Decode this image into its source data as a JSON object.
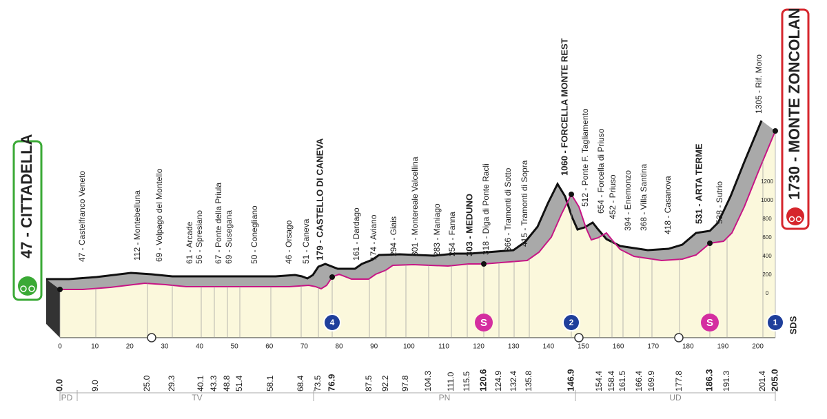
{
  "start": {
    "label": "47 - CITTADELLA"
  },
  "finish": {
    "label": "1730 - MONTE ZONCOLAN"
  },
  "waypoints": [
    "47 - Castelfranco Veneto",
    "112 - Montebelluna",
    "69 - Volpago del Montello",
    "61 - Arcade",
    "56 - Spresiano",
    "67 - Ponte della Priula",
    "69 - Susegana",
    "50 - Conegliano",
    "46 - Orsago",
    "51 - Caneva",
    "179 - CASTELLO DI CANEVA",
    "161 - Dardago",
    "174 - Aviano",
    "294 - Giais",
    "301 - Montereale Valcellina",
    "283 - Maniago",
    "254 - Fanna",
    "303 - MEDUNO",
    "318 - Diga di Ponte Racli",
    "366 - Tramonti di Sotto",
    "415 - Tramonti di Sopra",
    "1060 - FORCELLA MONTE REST",
    "512 - Ponte F. Tagliamento",
    "654 - Forcella di Priuso",
    "452 - Priuso",
    "394 - Enemonzo",
    "368 - Villa Santina",
    "418 - Casanova",
    "531 - ARTA TERME",
    "538 - Sutrio",
    "1305 - Rif. Moro"
  ],
  "altitude_scale": [
    0,
    200,
    400,
    600,
    800,
    1000,
    1200
  ],
  "km_axis": [
    0,
    10,
    20,
    30,
    40,
    50,
    60,
    70,
    80,
    90,
    100,
    110,
    120,
    130,
    140,
    150,
    160,
    170,
    180,
    190,
    200
  ],
  "distances": [
    "0.0",
    "9.0",
    "25.0",
    "29.3",
    "40.1",
    "43.3",
    "48.8",
    "51.4",
    "58.1",
    "68.4",
    "73.5",
    "76.9",
    "87.5",
    "92.2",
    "97.8",
    "104.3",
    "111.0",
    "115.5",
    "120.6",
    "124.9",
    "132.4",
    "135.8",
    "146.9",
    "154.4",
    "158.4",
    "161.5",
    "166.4",
    "169.9",
    "177.8",
    "186.3",
    "191.3",
    "201.4",
    "205.0"
  ],
  "regions": [
    "PD",
    "TV",
    "PN",
    "UD"
  ],
  "climbs": [
    "4",
    "2",
    "1"
  ],
  "sprints": [
    "S",
    "S"
  ],
  "logo": "SDS"
}
